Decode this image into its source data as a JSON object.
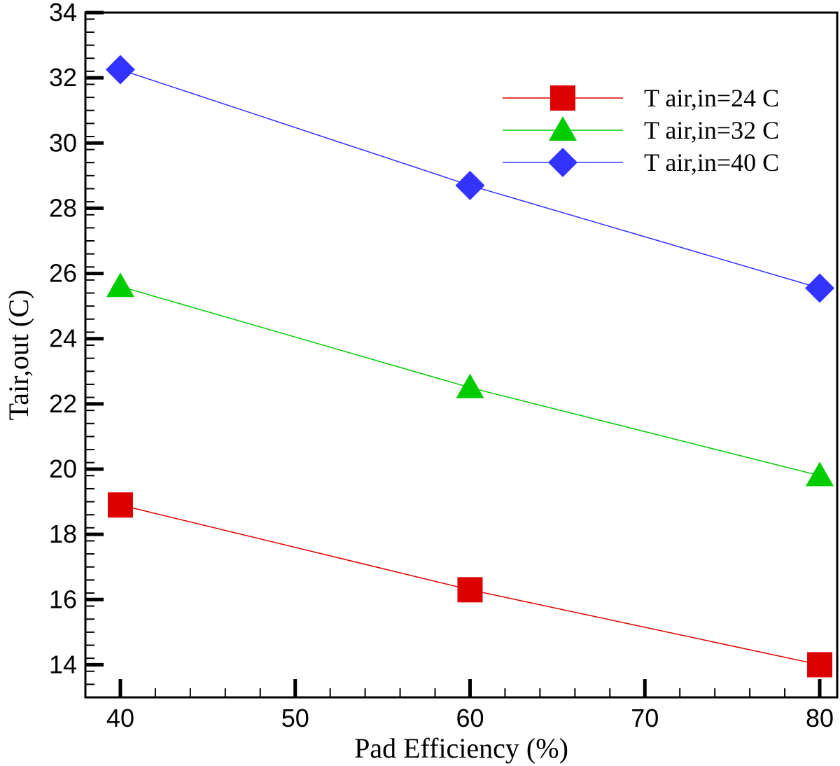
{
  "chart_data": {
    "type": "line",
    "title": "",
    "xlabel": "Pad Efficiency (%)",
    "ylabel": "Tair,out (C)",
    "xlim": [
      38,
      81
    ],
    "ylim": [
      13,
      34
    ],
    "xticks": [
      40,
      50,
      60,
      70,
      80
    ],
    "yticks": [
      14,
      16,
      18,
      20,
      22,
      24,
      26,
      28,
      30,
      32,
      34
    ],
    "grid": false,
    "legend_position": "top-right",
    "x": [
      40,
      60,
      80
    ],
    "series": [
      {
        "name": "T air,in=24 C",
        "values": [
          18.9,
          16.3,
          14.0
        ],
        "color": "#dd0000",
        "marker": "square"
      },
      {
        "name": "T air,in=32 C",
        "values": [
          25.6,
          22.5,
          19.8
        ],
        "color": "#00cc00",
        "marker": "triangle"
      },
      {
        "name": "T air,in=40 C",
        "values": [
          32.25,
          28.7,
          25.55
        ],
        "color": "#3333ff",
        "marker": "diamond"
      }
    ]
  }
}
